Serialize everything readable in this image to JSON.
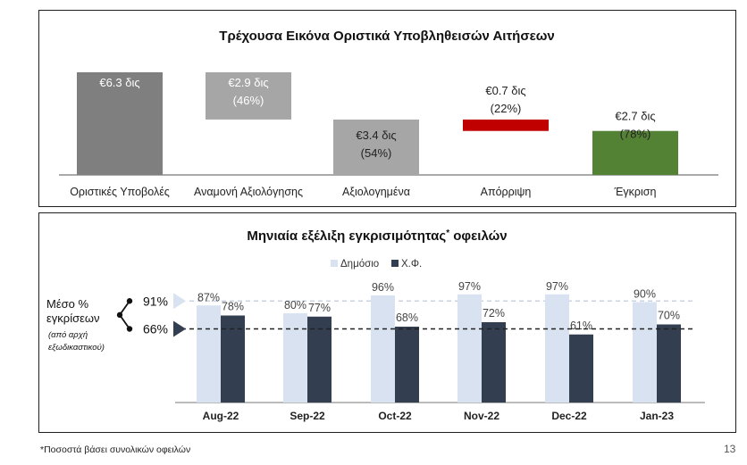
{
  "chart_data": [
    {
      "type": "bar",
      "subtype": "waterfall",
      "title": "Τρέχουσα Εικόνα Οριστικά Υποβληθεισών Αιτήσεων",
      "categories": [
        "Οριστικές Υποβολές",
        "Αναμονή Αξιολόγησης",
        "Αξιολογημένα",
        "Απόρριψη",
        "Έγκριση"
      ],
      "values": [
        6.3,
        2.9,
        3.4,
        0.7,
        2.7
      ],
      "value_labels": [
        "€6.3 δις",
        "€2.9 δις",
        "€3.4 δις",
        "€0.7 δις",
        "€2.7 δις"
      ],
      "pct_labels": [
        "",
        "(46%)",
        "(54%)",
        "(22%)",
        "(78%)"
      ],
      "bar_colors": [
        "#7f7f7f",
        "#a6a6a6",
        "#a6a6a6",
        "#c00000",
        "#548235"
      ],
      "ylim": [
        0,
        6.3
      ],
      "grid": false
    },
    {
      "type": "bar",
      "title": "Μηνιαία εξέλιξη εγκρισιμότητας",
      "title_sup": "*",
      "title_rest": " οφειλών",
      "categories": [
        "Aug-22",
        "Sep-22",
        "Oct-22",
        "Nov-22",
        "Dec-22",
        "Jan-23"
      ],
      "series": [
        {
          "name": "Δημόσιο",
          "values": [
            87,
            80,
            96,
            97,
            97,
            90
          ],
          "labels": [
            "87%",
            "80%",
            "96%",
            "97%",
            "97%",
            "90%"
          ],
          "color": "#d9e2f0"
        },
        {
          "name": "Χ.Φ.",
          "values": [
            78,
            77,
            68,
            72,
            61,
            70
          ],
          "labels": [
            "78%",
            "77%",
            "68%",
            "72%",
            "61%",
            "70%"
          ],
          "color": "#333f50"
        }
      ],
      "ylim": [
        0,
        100
      ],
      "legend": "top-center",
      "reference_lines": [
        {
          "value": 91,
          "label": "91%",
          "color": "#d9e2f0",
          "style": "dashed"
        },
        {
          "value": 66,
          "label": "66%",
          "color": "#333f50",
          "style": "dashed"
        }
      ],
      "side_label": {
        "line1": "Μέσο %",
        "line2": "εγκρίσεων",
        "line3": "(από αρχή",
        "line4": "εξωδικαστικού)"
      }
    }
  ],
  "footnote": "*Ποσοστά βάσει συνολικών οφειλών",
  "page_number": "13"
}
